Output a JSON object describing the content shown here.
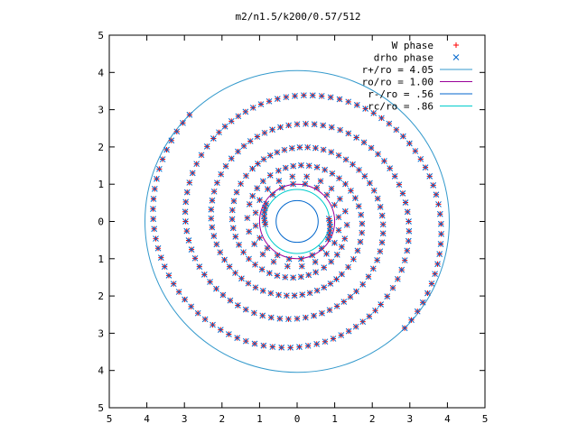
{
  "chart_data": {
    "type": "scatter",
    "title": "m2/n1.5/k200/0.57/512",
    "xlabel": "",
    "ylabel": "",
    "xlim": [
      -5,
      5
    ],
    "ylim": [
      -5,
      5
    ],
    "x_tick_values": [
      -5,
      -4,
      -3,
      -2,
      -1,
      0,
      1,
      2,
      3,
      4,
      5
    ],
    "x_tick_labels": [
      "5",
      "4",
      "3",
      "2",
      "1",
      "0",
      "1",
      "2",
      "3",
      "4",
      "5"
    ],
    "y_tick_values": [
      5,
      4,
      3,
      2,
      1,
      0,
      -1,
      -2,
      -3,
      -4,
      -5
    ],
    "y_tick_labels": [
      "5",
      "4",
      "3",
      "2",
      "1",
      "0",
      "1",
      "2",
      "3",
      "4",
      "5"
    ],
    "grid": false,
    "legend_position": "top-right",
    "point_series": [
      {
        "name": "W phase",
        "marker": "plus",
        "color": "#ff0000"
      },
      {
        "name": "drho phase",
        "marker": "cross",
        "color": "#0066cc"
      }
    ],
    "spiral": {
      "arms": 2,
      "arm_phase_offsets_deg": [
        0,
        180
      ],
      "r_values": [
        0.85,
        0.95,
        1.05,
        1.15,
        1.25,
        1.35,
        1.45,
        1.55,
        1.65,
        1.75,
        1.85,
        1.95,
        2.05,
        2.15,
        2.25,
        2.35,
        2.45,
        2.55,
        2.65,
        2.75,
        2.85,
        2.95,
        3.05,
        3.15,
        3.25,
        3.35,
        3.45,
        3.55,
        3.65,
        3.75,
        3.85,
        3.95,
        4.05
      ],
      "phase_deg": [
        185,
        150,
        60,
        -30,
        -120,
        -200,
        -250,
        -290,
        -330,
        -370,
        -410,
        -440,
        -470,
        -500,
        -530,
        -560,
        -590,
        -615,
        -640,
        -665,
        -690,
        -715,
        -740,
        -765,
        -785,
        -805,
        -825,
        -845,
        -865,
        -885,
        -905,
        -925,
        -945
      ]
    },
    "circles": [
      {
        "name": "r+/ro = 4.05",
        "r": 4.05,
        "color": "#3399cc"
      },
      {
        "name": "ro/ro = 1.00",
        "r": 1.0,
        "color": "#990099"
      },
      {
        "name": "r-/ro = .56",
        "r": 0.56,
        "color": "#0066cc"
      },
      {
        "name": "rc/ro = .86",
        "r": 0.86,
        "color": "#00cccc"
      }
    ]
  }
}
